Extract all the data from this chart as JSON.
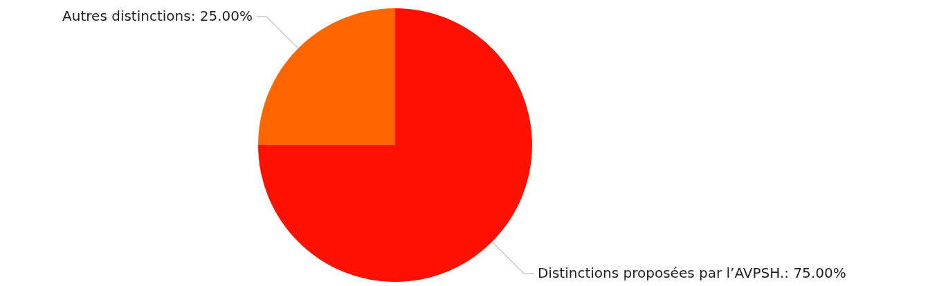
{
  "chart_data": {
    "type": "pie",
    "categories": [
      "Distinctions proposées par l’AVPSH.",
      "Autres distinctions"
    ],
    "values": [
      75,
      25
    ],
    "colors": [
      "#ff1100",
      "#ff6600"
    ],
    "value_labels": [
      "75.00%",
      "25.00%"
    ]
  }
}
